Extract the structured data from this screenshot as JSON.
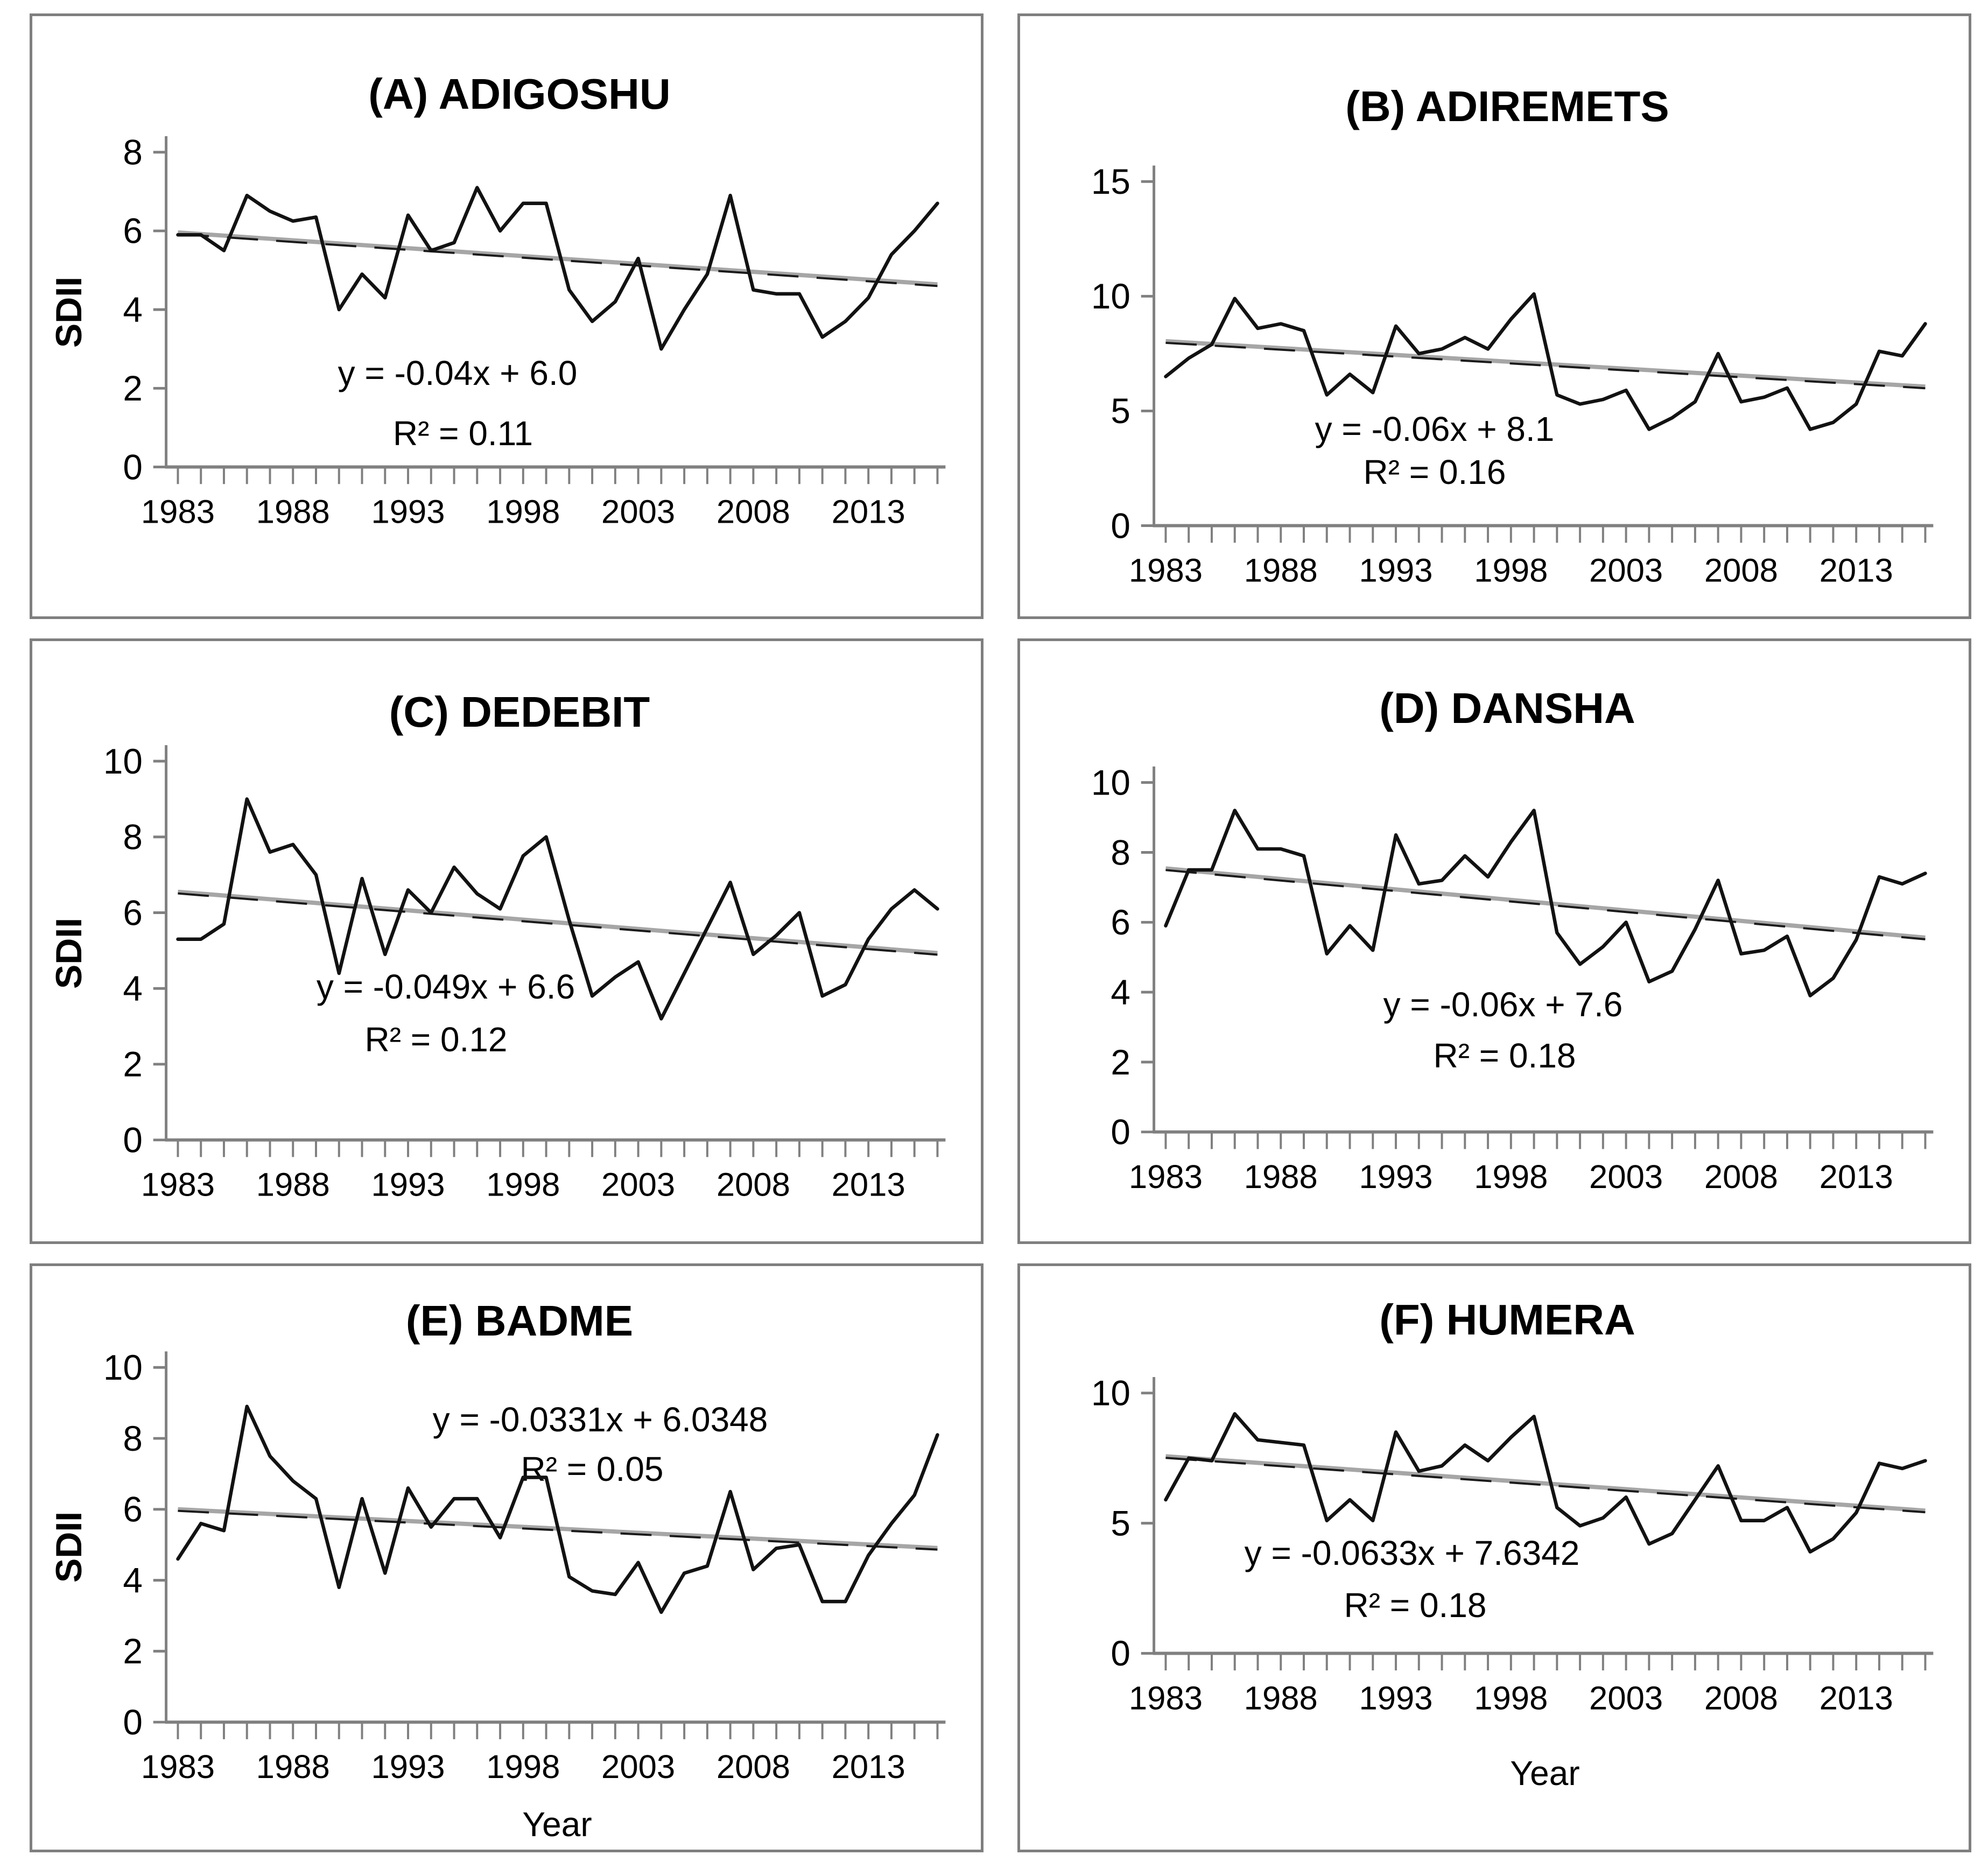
{
  "figure": {
    "x_axis": {
      "tick_labels": [
        "1983",
        "1988",
        "1993",
        "1998",
        "2003",
        "2008",
        "2013"
      ],
      "start_year": 1983,
      "end_year": 2016
    },
    "years": [
      1983,
      1984,
      1985,
      1986,
      1987,
      1988,
      1989,
      1990,
      1991,
      1992,
      1993,
      1994,
      1995,
      1996,
      1997,
      1998,
      1999,
      2000,
      2001,
      2002,
      2003,
      2004,
      2005,
      2006,
      2007,
      2008,
      2009,
      2010,
      2011,
      2012,
      2013,
      2014,
      2015,
      2016
    ],
    "colors": {
      "background": "#ffffff",
      "panel_border": "#7f7f7f",
      "axis": "#808080",
      "data_line": "#121212",
      "trend_gray": "#a6a6a6",
      "trend_dash": "#1a1a1a",
      "text": "#000000"
    }
  },
  "chart_data": [
    {
      "type": "line",
      "panel_letter": "A",
      "title": "(A) ADIGOSHU",
      "ylabel": "SDII",
      "xlabel": "",
      "equation": "y = -0.04x + 6.0",
      "r_squared": "R² = 0.11",
      "trend": {
        "slope": -0.04,
        "intercept": 6.0
      },
      "ylim": [
        0,
        8
      ],
      "yticks": [
        0,
        2,
        4,
        6,
        8
      ],
      "values": [
        5.9,
        5.9,
        5.5,
        6.9,
        6.5,
        6.25,
        6.35,
        4.0,
        4.9,
        4.3,
        6.4,
        5.5,
        5.7,
        7.1,
        6.0,
        6.7,
        6.7,
        4.5,
        3.7,
        4.2,
        5.3,
        3.0,
        4.0,
        4.9,
        6.9,
        4.5,
        4.4,
        4.4,
        3.3,
        3.7,
        4.3,
        5.4,
        6.0,
        6.7
      ]
    },
    {
      "type": "line",
      "panel_letter": "B",
      "title": "(B) ADIREMETS",
      "ylabel": "",
      "xlabel": "",
      "equation": "y = -0.06x + 8.1",
      "r_squared": "R² = 0.16",
      "trend": {
        "slope": -0.06,
        "intercept": 8.1
      },
      "ylim": [
        0,
        15
      ],
      "yticks": [
        0,
        5,
        10,
        15
      ],
      "values": [
        6.5,
        7.3,
        7.9,
        9.9,
        8.6,
        8.8,
        8.5,
        5.7,
        6.6,
        5.8,
        8.7,
        7.5,
        7.7,
        8.2,
        7.7,
        9.0,
        10.1,
        5.7,
        5.3,
        5.5,
        5.9,
        4.2,
        4.7,
        5.4,
        7.5,
        5.4,
        5.6,
        6.0,
        4.2,
        4.5,
        5.3,
        7.6,
        7.4,
        8.8
      ]
    },
    {
      "type": "line",
      "panel_letter": "C",
      "title": "(C) DEDEBIT",
      "ylabel": "SDII",
      "xlabel": "",
      "equation": "y = -0.049x + 6.6",
      "r_squared": "R² = 0.12",
      "trend": {
        "slope": -0.049,
        "intercept": 6.6
      },
      "ylim": [
        0,
        10
      ],
      "yticks": [
        0,
        2,
        4,
        6,
        8,
        10
      ],
      "values": [
        5.3,
        5.3,
        5.7,
        9.0,
        7.6,
        7.8,
        7.0,
        4.4,
        6.9,
        4.9,
        6.6,
        6.0,
        7.2,
        6.5,
        6.1,
        7.5,
        8.0,
        5.8,
        3.8,
        4.3,
        4.7,
        3.2,
        4.4,
        5.6,
        6.8,
        4.9,
        5.4,
        6.0,
        3.8,
        4.1,
        5.3,
        6.1,
        6.6,
        6.1
      ]
    },
    {
      "type": "line",
      "panel_letter": "D",
      "title": "(D) DANSHA",
      "ylabel": "",
      "xlabel": "",
      "equation": "y = -0.06x + 7.6",
      "r_squared": "R² = 0.18",
      "trend": {
        "slope": -0.06,
        "intercept": 7.6
      },
      "ylim": [
        0,
        10
      ],
      "yticks": [
        0,
        2,
        4,
        6,
        8,
        10
      ],
      "values": [
        5.9,
        7.5,
        7.5,
        9.2,
        8.1,
        8.1,
        7.9,
        5.1,
        5.9,
        5.2,
        8.5,
        7.1,
        7.2,
        7.9,
        7.3,
        8.3,
        9.2,
        5.7,
        4.8,
        5.3,
        6.0,
        4.3,
        4.6,
        5.8,
        7.2,
        5.1,
        5.2,
        5.6,
        3.9,
        4.4,
        5.5,
        7.3,
        7.1,
        7.4
      ]
    },
    {
      "type": "line",
      "panel_letter": "E",
      "title": "(E) BADME",
      "ylabel": "SDII",
      "xlabel": "Year",
      "equation": "y = -0.0331x + 6.0348",
      "r_squared": "R² = 0.05",
      "trend": {
        "slope": -0.0331,
        "intercept": 6.0348
      },
      "ylim": [
        0,
        10
      ],
      "yticks": [
        0,
        2,
        4,
        6,
        8,
        10
      ],
      "values": [
        4.6,
        5.6,
        5.4,
        8.9,
        7.5,
        6.8,
        6.3,
        3.8,
        6.3,
        4.2,
        6.6,
        5.5,
        6.3,
        6.3,
        5.2,
        6.9,
        6.9,
        4.1,
        3.7,
        3.6,
        4.5,
        3.1,
        4.2,
        4.4,
        6.5,
        4.3,
        4.9,
        5.0,
        3.4,
        3.4,
        4.7,
        5.6,
        6.4,
        8.1
      ]
    },
    {
      "type": "line",
      "panel_letter": "F",
      "title": "(F) HUMERA",
      "ylabel": "",
      "xlabel": "Year",
      "equation": "y = -0.0633x + 7.6342",
      "r_squared": "R² = 0.18",
      "trend": {
        "slope": -0.0633,
        "intercept": 7.6342
      },
      "ylim": [
        0,
        10
      ],
      "yticks": [
        0,
        5,
        10
      ],
      "values": [
        5.9,
        7.5,
        7.4,
        9.2,
        8.2,
        8.1,
        8.0,
        5.1,
        5.9,
        5.1,
        8.5,
        7.0,
        7.2,
        8.0,
        7.4,
        8.3,
        9.1,
        5.6,
        4.9,
        5.2,
        6.0,
        4.2,
        4.6,
        5.9,
        7.2,
        5.1,
        5.1,
        5.6,
        3.9,
        4.4,
        5.4,
        7.3,
        7.1,
        7.4
      ]
    }
  ]
}
